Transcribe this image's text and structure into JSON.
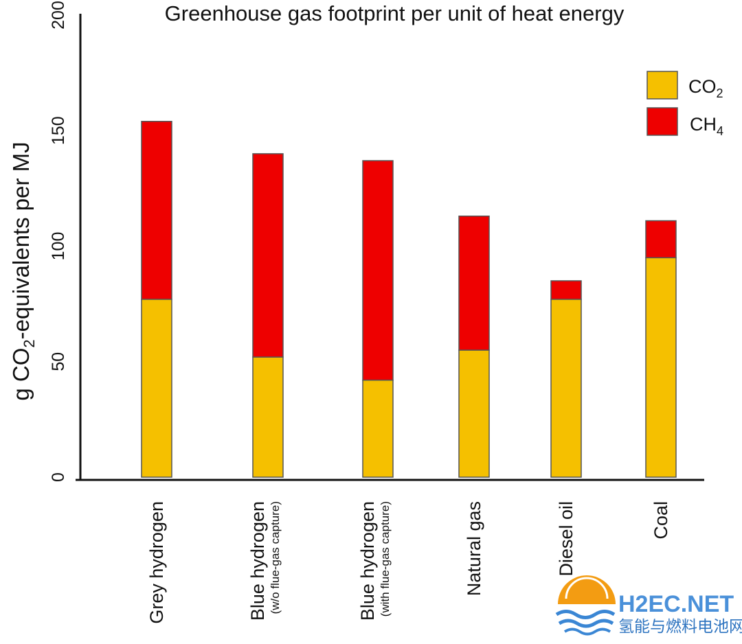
{
  "chart_data": {
    "type": "bar",
    "stacked": true,
    "title": "Greenhouse gas footprint per unit of heat energy",
    "ylabel": "g CO2-equivalents per MJ",
    "ylabel_parts": {
      "before": "g CO",
      "sub": "2",
      "after": "-equivalents per MJ"
    },
    "ylim": [
      0,
      200
    ],
    "yticks": [
      "0",
      "50",
      "100",
      "150",
      "200"
    ],
    "categories": [
      {
        "label": "Grey hydrogen",
        "sublabel": ""
      },
      {
        "label": "Blue hydrogen",
        "sublabel": "(w/o flue-gas capture)"
      },
      {
        "label": "Blue hydrogen",
        "sublabel": "(with flue-gas capture)"
      },
      {
        "label": "Natural gas",
        "sublabel": ""
      },
      {
        "label": "Diesel oil",
        "sublabel": ""
      },
      {
        "label": "Coal",
        "sublabel": ""
      }
    ],
    "series": [
      {
        "name": "CO2",
        "name_base": "CO",
        "name_sub": "2",
        "color": "#f5c000",
        "values": [
          77,
          52,
          42,
          55,
          77,
          95
        ]
      },
      {
        "name": "CH4",
        "name_base": "CH",
        "name_sub": "4",
        "color": "#ee0000",
        "values": [
          77,
          88,
          95,
          58,
          8,
          16
        ]
      }
    ],
    "legend_position": "top-right",
    "grid": false
  },
  "watermark": {
    "text": "H2EC.NET",
    "subtext": "氢能与燃料电池网"
  }
}
